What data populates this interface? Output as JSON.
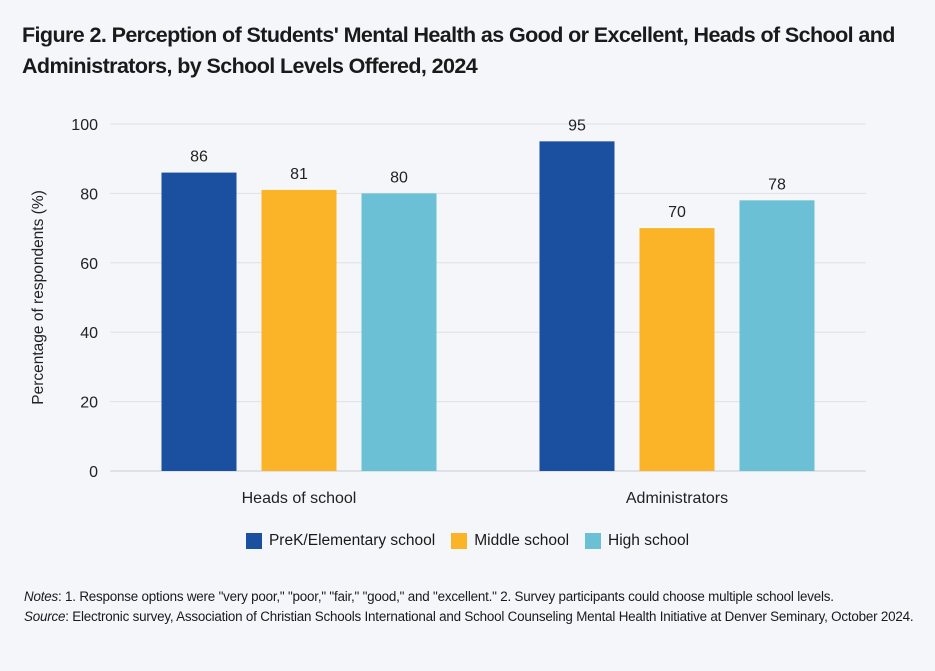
{
  "title": {
    "line1": "Figure 2. Perception of Students' Mental Health as Good or Excellent, Heads of School and",
    "line2": "Administrators, by School Levels Offered, 2024"
  },
  "chart_data": {
    "type": "bar",
    "title": "Figure 2. Perception of Students' Mental Health as Good or Excellent, Heads of School and Administrators, by School Levels Offered, 2024",
    "categories": [
      "Heads of school",
      "Administrators"
    ],
    "series": [
      {
        "name": "PreK/Elementary school",
        "values": [
          86,
          95
        ],
        "color": "#1b4fa0"
      },
      {
        "name": "Middle school",
        "values": [
          81,
          70
        ],
        "color": "#fbb428"
      },
      {
        "name": "High school",
        "values": [
          80,
          78
        ],
        "color": "#6cc0d6"
      }
    ],
    "ylabel": "Percentage of respondents (%)",
    "xlabel": "",
    "ylim": [
      0,
      100
    ],
    "yticks": [
      0,
      20,
      40,
      60,
      80,
      100
    ],
    "grid": true,
    "legend": "bottom-center"
  },
  "notes": {
    "label": "Notes",
    "text": ": 1. Response options were \"very poor,\" \"poor,\" \"fair,\" \"good,\" and \"excellent.\" 2. Survey participants could choose multiple school levels.",
    "source_label": "Source",
    "source_text": ": Electronic survey, Association of Christian Schools International and School Counseling Mental Health Initiative at Denver Seminary, October 2024."
  }
}
